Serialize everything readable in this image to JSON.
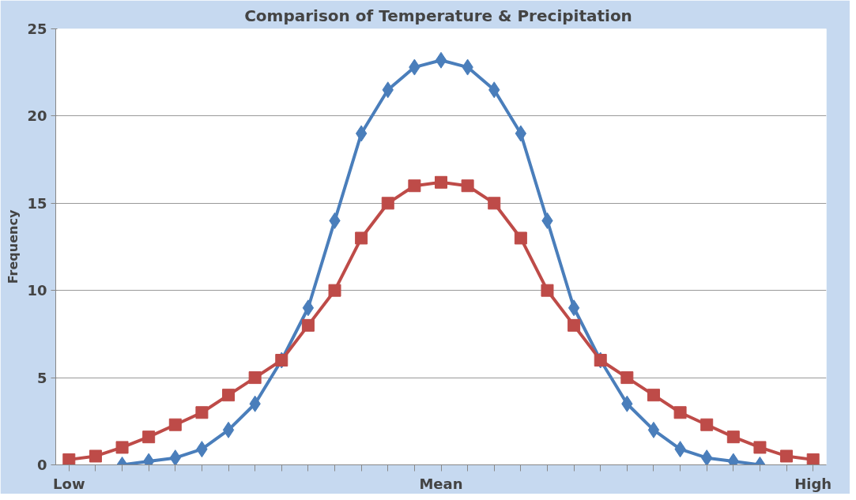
{
  "chart_data": {
    "type": "line",
    "title": "Comparison of Temperature  & Precipitation",
    "ylabel": "Frequency",
    "categories": [
      "Low",
      null,
      null,
      null,
      null,
      null,
      null,
      null,
      null,
      null,
      null,
      null,
      null,
      null,
      "Mean",
      null,
      null,
      null,
      null,
      null,
      null,
      null,
      null,
      null,
      null,
      null,
      null,
      null,
      "High"
    ],
    "series": [
      {
        "color": "#4a7ebb",
        "marker": "diamond",
        "values": [
          null,
          null,
          0,
          0.2,
          0.4,
          0.9,
          2,
          3.5,
          6,
          9,
          14,
          19,
          21.5,
          22.8,
          23.2,
          22.8,
          21.5,
          19,
          14,
          9,
          6,
          3.5,
          2,
          0.9,
          0.4,
          0.2,
          0,
          null,
          null
        ]
      },
      {
        "color": "#be4b48",
        "marker": "square",
        "values": [
          0.3,
          0.5,
          1.0,
          1.6,
          2.3,
          3.0,
          4.0,
          5.0,
          6.0,
          8.0,
          10,
          13,
          15,
          16,
          16.2,
          16,
          15,
          13,
          10,
          8,
          6,
          5,
          4,
          3,
          2.3,
          1.6,
          1.0,
          0.5,
          0.3
        ]
      }
    ],
    "ylim": [
      0,
      25
    ],
    "yticks": [
      0,
      5,
      10,
      15,
      20,
      25
    ],
    "grid": "y",
    "line_style": "solid"
  }
}
